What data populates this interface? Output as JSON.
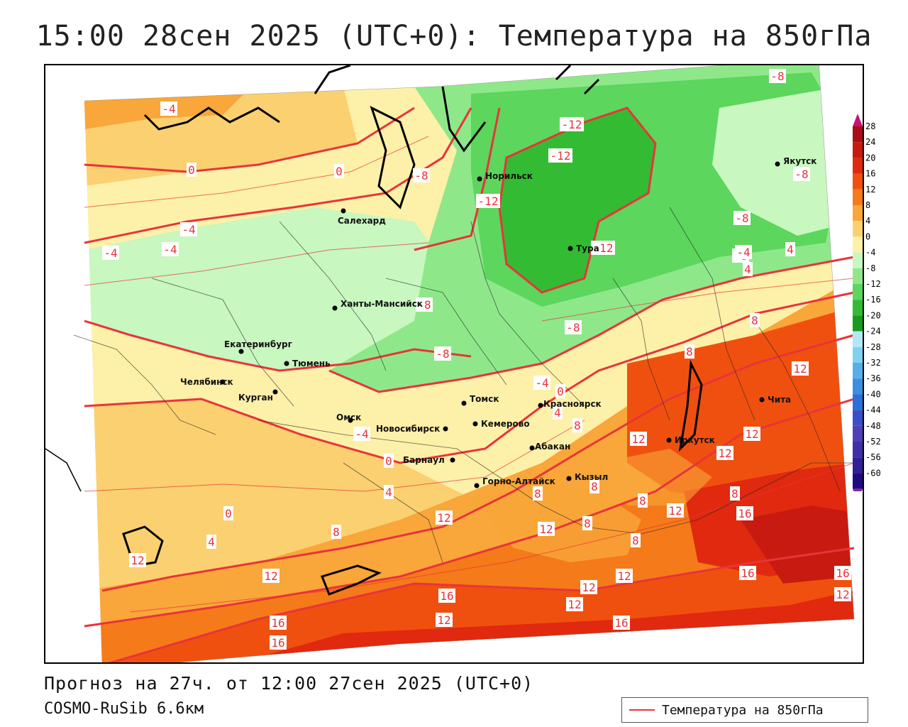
{
  "title": "15:00 28сен 2025 (UTC+0): Температура на 850гПа",
  "footer": {
    "forecast": "Прогноз на 27ч. от 12:00 27сен 2025 (UTC+0)",
    "model": "COSMO-RuSib 6.6км"
  },
  "legend": {
    "label": "Температура на 850гПа",
    "line_color": "#e8343a"
  },
  "colorbar": {
    "labels": [
      "28",
      "24",
      "20",
      "16",
      "12",
      "8",
      "4",
      "0",
      "-4",
      "-8",
      "-12",
      "-16",
      "-20",
      "-24",
      "-28",
      "-32",
      "-36",
      "-40",
      "-44",
      "-48",
      "-52",
      "-56",
      "-60"
    ],
    "colors": [
      "#a50f15",
      "#c81a10",
      "#e0290f",
      "#f0500f",
      "#f57a1a",
      "#f9a63a",
      "#fbd070",
      "#fdf0a8",
      "#c8f7c0",
      "#8ee88a",
      "#5cd65c",
      "#33bb33",
      "#1a9a1a",
      "#b0e8f8",
      "#80d0f0",
      "#55b0e8",
      "#3a90e0",
      "#2a70d8",
      "#3a50c8",
      "#5040b8",
      "#4030a8",
      "#302098",
      "#200a80"
    ]
  },
  "cities": [
    {
      "name": "Норильск"
    },
    {
      "name": "Тура"
    },
    {
      "name": "Якутск"
    },
    {
      "name": "Салехард"
    },
    {
      "name": "Ханты-Мансийск"
    },
    {
      "name": "Екатеринбург"
    },
    {
      "name": "Тюмень"
    },
    {
      "name": "Челябинск"
    },
    {
      "name": "Курган"
    },
    {
      "name": "Омск"
    },
    {
      "name": "Новосибирск"
    },
    {
      "name": "Томск"
    },
    {
      "name": "Кемерово"
    },
    {
      "name": "Красноярск"
    },
    {
      "name": "Барнаул"
    },
    {
      "name": "Абакан"
    },
    {
      "name": "Горно-Алтайск"
    },
    {
      "name": "Кызыл"
    },
    {
      "name": "Иркутск"
    },
    {
      "name": "Чита"
    }
  ],
  "isotherm_labels": [
    "-12",
    "-12",
    "-12",
    "-12",
    "-8",
    "-8",
    "-8",
    "-8",
    "-8",
    "-8",
    "-8",
    "-8",
    "-4",
    "-4",
    "-4",
    "-4",
    "-4",
    "-4",
    "-4",
    "0",
    "0",
    "0",
    "0",
    "0",
    "4",
    "4",
    "4",
    "4",
    "4",
    "8",
    "8",
    "8",
    "8",
    "8",
    "8",
    "8",
    "8",
    "8",
    "8",
    "12",
    "12",
    "12",
    "12",
    "12",
    "12",
    "12",
    "12",
    "12",
    "12",
    "12",
    "12",
    "12",
    "12",
    "16",
    "16",
    "16",
    "16",
    "16",
    "16",
    "16"
  ]
}
